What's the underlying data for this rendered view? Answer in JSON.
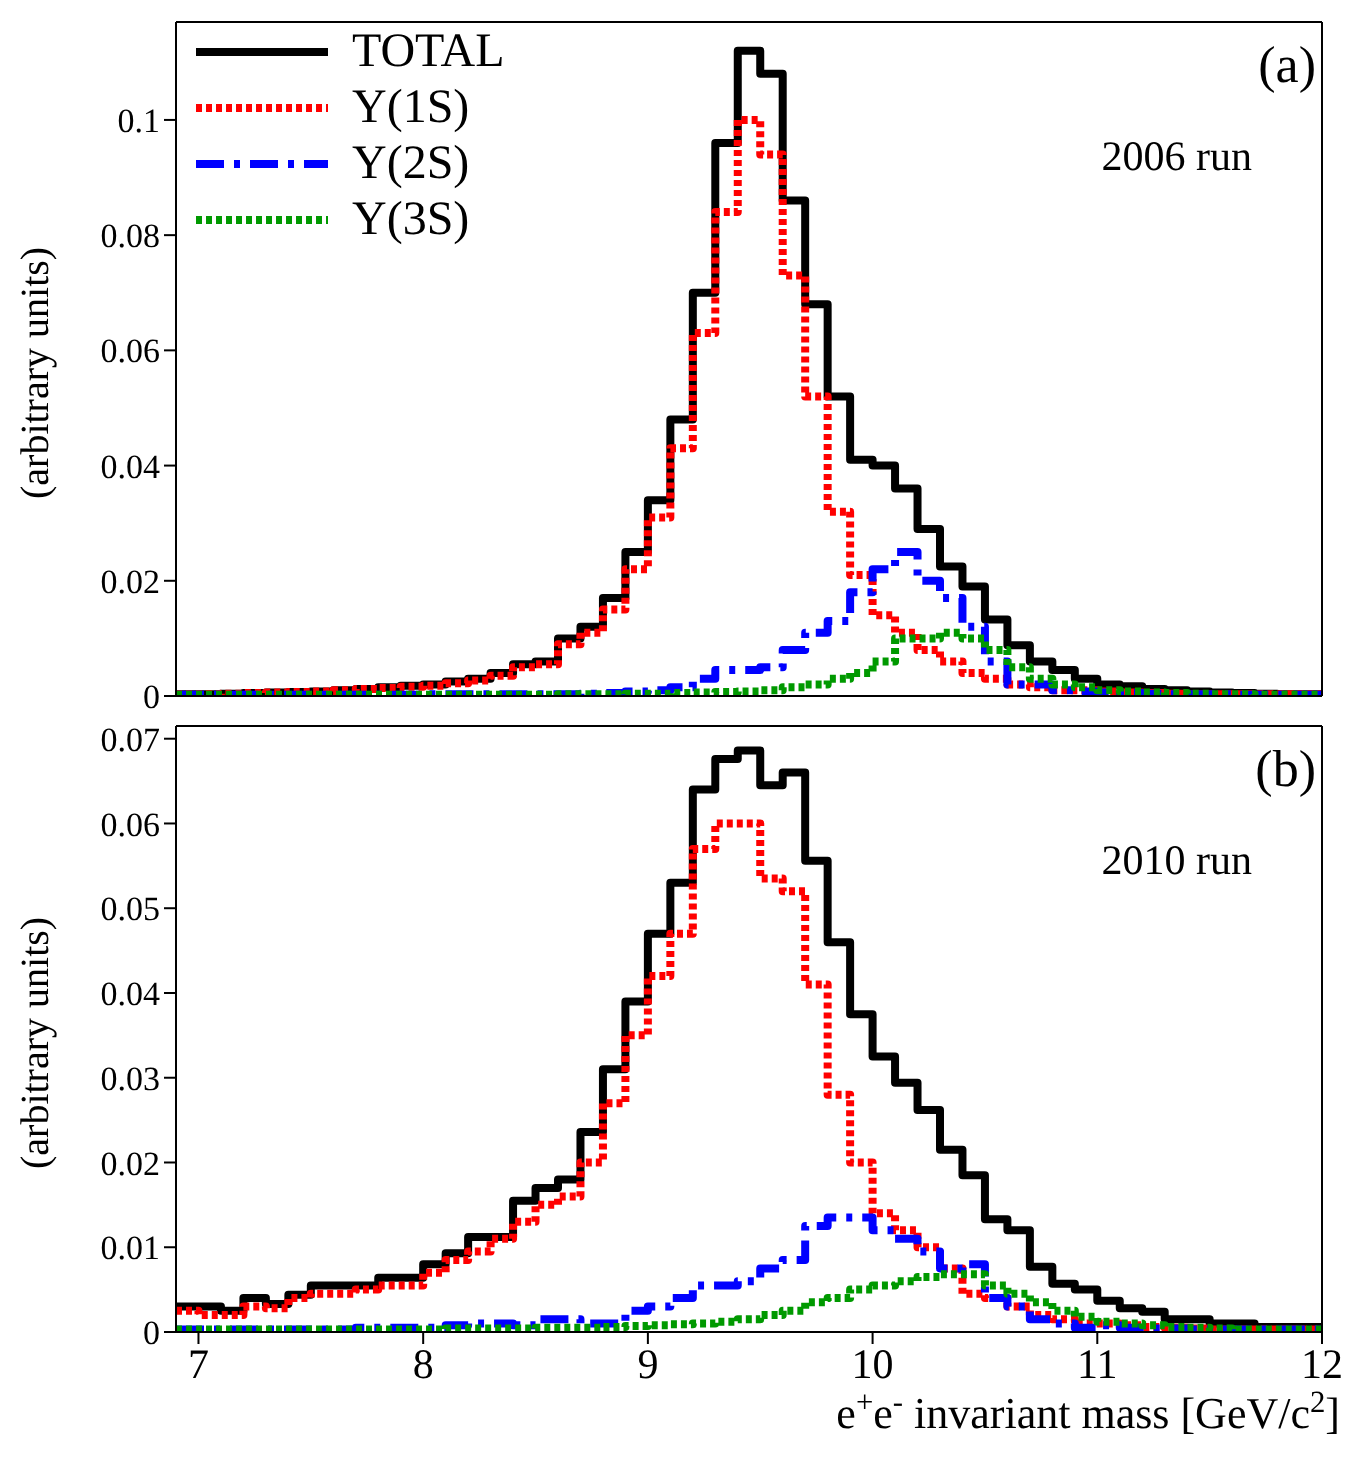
{
  "chart_data": [
    {
      "type": "histogram",
      "ylabel": "(arbitrary units)",
      "annotations": [
        "(a)",
        "2006 run"
      ],
      "legend": "top left",
      "tick_labels": "y",
      "xlim": [
        6.9,
        12
      ],
      "xticks": [
        7,
        8,
        9,
        10,
        11,
        12
      ],
      "ylim": [
        0,
        0.117
      ],
      "yticks": [
        0,
        0.02,
        0.04,
        0.06,
        0.08,
        0.1
      ],
      "bins": [
        6.9,
        7.0,
        7.1,
        7.2,
        7.3,
        7.4,
        7.5,
        7.6,
        7.7,
        7.8,
        7.9,
        8.0,
        8.1,
        8.2,
        8.3,
        8.4,
        8.5,
        8.6,
        8.7,
        8.8,
        8.9,
        9.0,
        9.1,
        9.2,
        9.3,
        9.4,
        9.5,
        9.6,
        9.7,
        9.8,
        9.9,
        10.0,
        10.1,
        10.2,
        10.3,
        10.4,
        10.5,
        10.6,
        10.7,
        10.8,
        10.9,
        11.0,
        11.1,
        11.2,
        11.3,
        11.4,
        11.5,
        11.6,
        11.7,
        11.8,
        11.9,
        12.0
      ],
      "series": [
        {
          "name": "TOTAL",
          "color": "#000000",
          "line_style": "solid",
          "values": [
            0.0003,
            0.0003,
            0.0004,
            0.0005,
            0.0006,
            0.0007,
            0.0008,
            0.001,
            0.0012,
            0.0015,
            0.0018,
            0.002,
            0.0025,
            0.003,
            0.004,
            0.0055,
            0.006,
            0.01,
            0.012,
            0.017,
            0.025,
            0.034,
            0.048,
            0.07,
            0.096,
            0.112,
            0.108,
            0.086,
            0.068,
            0.052,
            0.041,
            0.04,
            0.036,
            0.029,
            0.0225,
            0.019,
            0.0133,
            0.0088,
            0.006,
            0.0045,
            0.003,
            0.002,
            0.0017,
            0.0012,
            0.001,
            0.0008,
            0.0006,
            0.0005,
            0.0004,
            0.0003,
            0.0003
          ]
        },
        {
          "name": "Υ(1S)",
          "color": "#ff0000",
          "line_style": "dotted",
          "values": [
            0.0003,
            0.0003,
            0.0004,
            0.0005,
            0.0006,
            0.0007,
            0.0008,
            0.001,
            0.0012,
            0.0014,
            0.0016,
            0.0018,
            0.0022,
            0.0027,
            0.0035,
            0.005,
            0.0055,
            0.009,
            0.011,
            0.015,
            0.022,
            0.031,
            0.043,
            0.063,
            0.084,
            0.1,
            0.094,
            0.073,
            0.052,
            0.032,
            0.021,
            0.014,
            0.011,
            0.008,
            0.006,
            0.004,
            0.003,
            0.002,
            0.0015,
            0.001,
            0.001,
            0.0008,
            0.0006,
            0.0005,
            0.0004,
            0.0003,
            0.0003,
            0.0003,
            0.0003,
            0.0003,
            0.0003
          ]
        },
        {
          "name": "Υ(2S)",
          "color": "#0000ff",
          "line_style": "dashed",
          "values": [
            0.0002,
            0.0002,
            0.0002,
            0.0002,
            0.0002,
            0.0002,
            0.0002,
            0.0002,
            0.0002,
            0.0002,
            0.0002,
            0.0003,
            0.0003,
            0.0003,
            0.0003,
            0.0003,
            0.0003,
            0.0003,
            0.0004,
            0.0005,
            0.0008,
            0.001,
            0.0015,
            0.003,
            0.0045,
            0.0045,
            0.005,
            0.008,
            0.011,
            0.013,
            0.018,
            0.022,
            0.025,
            0.02,
            0.017,
            0.012,
            0.006,
            0.002,
            0.002,
            0.001,
            0.0008,
            0.0006,
            0.0005,
            0.0004,
            0.0003,
            0.0003,
            0.0003,
            0.0002,
            0.0002,
            0.0002,
            0.0002
          ]
        },
        {
          "name": "Υ(3S)",
          "color": "#009900",
          "line_style": "dotted",
          "values": [
            0.0002,
            0.0002,
            0.0002,
            0.0002,
            0.0002,
            0.0002,
            0.0002,
            0.0002,
            0.0002,
            0.0002,
            0.0002,
            0.0002,
            0.0002,
            0.0002,
            0.0002,
            0.0002,
            0.0002,
            0.0003,
            0.0003,
            0.0003,
            0.0004,
            0.0004,
            0.0005,
            0.0006,
            0.0007,
            0.0008,
            0.001,
            0.0015,
            0.002,
            0.003,
            0.004,
            0.006,
            0.01,
            0.01,
            0.011,
            0.01,
            0.008,
            0.005,
            0.003,
            0.002,
            0.0015,
            0.001,
            0.0008,
            0.0006,
            0.0005,
            0.0004,
            0.0003,
            0.0003,
            0.0002,
            0.0002,
            0.0002
          ]
        }
      ]
    },
    {
      "type": "histogram",
      "ylabel": "(arbitrary units)",
      "xlabel": "e$^{+}$e$^{-}$ invariant mass [GeV/c$^{2}$]",
      "annotations": [
        "(b)",
        "2010 run"
      ],
      "xlim": [
        6.9,
        12
      ],
      "xticks": [
        7,
        8,
        9,
        10,
        11,
        12
      ],
      "ylim": [
        0,
        0.0715
      ],
      "yticks": [
        0,
        0.01,
        0.02,
        0.03,
        0.04,
        0.05,
        0.06,
        0.07
      ],
      "bins": [
        6.9,
        7.0,
        7.1,
        7.2,
        7.3,
        7.4,
        7.5,
        7.6,
        7.7,
        7.8,
        7.9,
        8.0,
        8.1,
        8.2,
        8.3,
        8.4,
        8.5,
        8.6,
        8.7,
        8.8,
        8.9,
        9.0,
        9.1,
        9.2,
        9.3,
        9.4,
        9.5,
        9.6,
        9.7,
        9.8,
        9.9,
        10.0,
        10.1,
        10.2,
        10.3,
        10.4,
        10.5,
        10.6,
        10.7,
        10.8,
        10.9,
        11.0,
        11.1,
        11.2,
        11.3,
        11.4,
        11.5,
        11.6,
        11.7,
        11.8,
        11.9,
        12.0
      ],
      "series": [
        {
          "color": "#000000",
          "line_style": "solid",
          "values": [
            0.003,
            0.003,
            0.0025,
            0.004,
            0.0033,
            0.0044,
            0.0055,
            0.0055,
            0.0055,
            0.0064,
            0.0064,
            0.008,
            0.0093,
            0.0112,
            0.0112,
            0.0155,
            0.017,
            0.018,
            0.0236,
            0.031,
            0.039,
            0.047,
            0.053,
            0.064,
            0.0676,
            0.0686,
            0.0645,
            0.066,
            0.0556,
            0.046,
            0.0375,
            0.0325,
            0.0294,
            0.0262,
            0.0215,
            0.0185,
            0.0133,
            0.012,
            0.0077,
            0.0057,
            0.005,
            0.0037,
            0.0028,
            0.0024,
            0.0015,
            0.0015,
            0.001,
            0.001,
            0.0006,
            0.0006,
            0.0006
          ]
        },
        {
          "color": "#ff0000",
          "line_style": "dotted",
          "values": [
            0.0025,
            0.002,
            0.002,
            0.003,
            0.0028,
            0.004,
            0.0045,
            0.0045,
            0.005,
            0.0055,
            0.0055,
            0.007,
            0.0085,
            0.0095,
            0.011,
            0.013,
            0.015,
            0.016,
            0.02,
            0.027,
            0.035,
            0.042,
            0.047,
            0.057,
            0.06,
            0.06,
            0.0535,
            0.052,
            0.041,
            0.028,
            0.02,
            0.014,
            0.012,
            0.01,
            0.0075,
            0.0045,
            0.004,
            0.003,
            0.002,
            0.0015,
            0.001,
            0.001,
            0.0008,
            0.0006,
            0.0005,
            0.0004,
            0.0003,
            0.0003,
            0.0003,
            0.0003,
            0.0003
          ]
        },
        {
          "color": "#0000ff",
          "line_style": "dashed",
          "values": [
            0.0003,
            0.0003,
            0.0003,
            0.0003,
            0.0003,
            0.0003,
            0.0003,
            0.0003,
            0.0005,
            0.0005,
            0.0005,
            0.0005,
            0.0008,
            0.001,
            0.001,
            0.0008,
            0.0015,
            0.0015,
            0.001,
            0.001,
            0.0025,
            0.003,
            0.004,
            0.0055,
            0.0055,
            0.006,
            0.0075,
            0.0085,
            0.0125,
            0.0135,
            0.0135,
            0.012,
            0.011,
            0.0095,
            0.0075,
            0.008,
            0.004,
            0.003,
            0.0015,
            0.001,
            0.0005,
            0.0008,
            0.0005,
            0.0004,
            0.0004,
            0.0003,
            0.0003,
            0.0003,
            0.0003,
            0.0003,
            0.0003
          ]
        },
        {
          "color": "#009900",
          "line_style": "dotted",
          "values": [
            0.0003,
            0.0003,
            0.0003,
            0.0003,
            0.0003,
            0.0003,
            0.0003,
            0.0003,
            0.0003,
            0.0003,
            0.0003,
            0.0003,
            0.0004,
            0.0004,
            0.0004,
            0.0004,
            0.0005,
            0.0005,
            0.0005,
            0.0006,
            0.0007,
            0.0008,
            0.0009,
            0.001,
            0.0012,
            0.0015,
            0.002,
            0.0025,
            0.0035,
            0.004,
            0.005,
            0.0055,
            0.006,
            0.0065,
            0.0068,
            0.0068,
            0.0055,
            0.0045,
            0.0035,
            0.0025,
            0.0018,
            0.0012,
            0.001,
            0.0008,
            0.0006,
            0.0005,
            0.0004,
            0.0003,
            0.0003,
            0.0003,
            0.0003
          ]
        }
      ]
    }
  ]
}
